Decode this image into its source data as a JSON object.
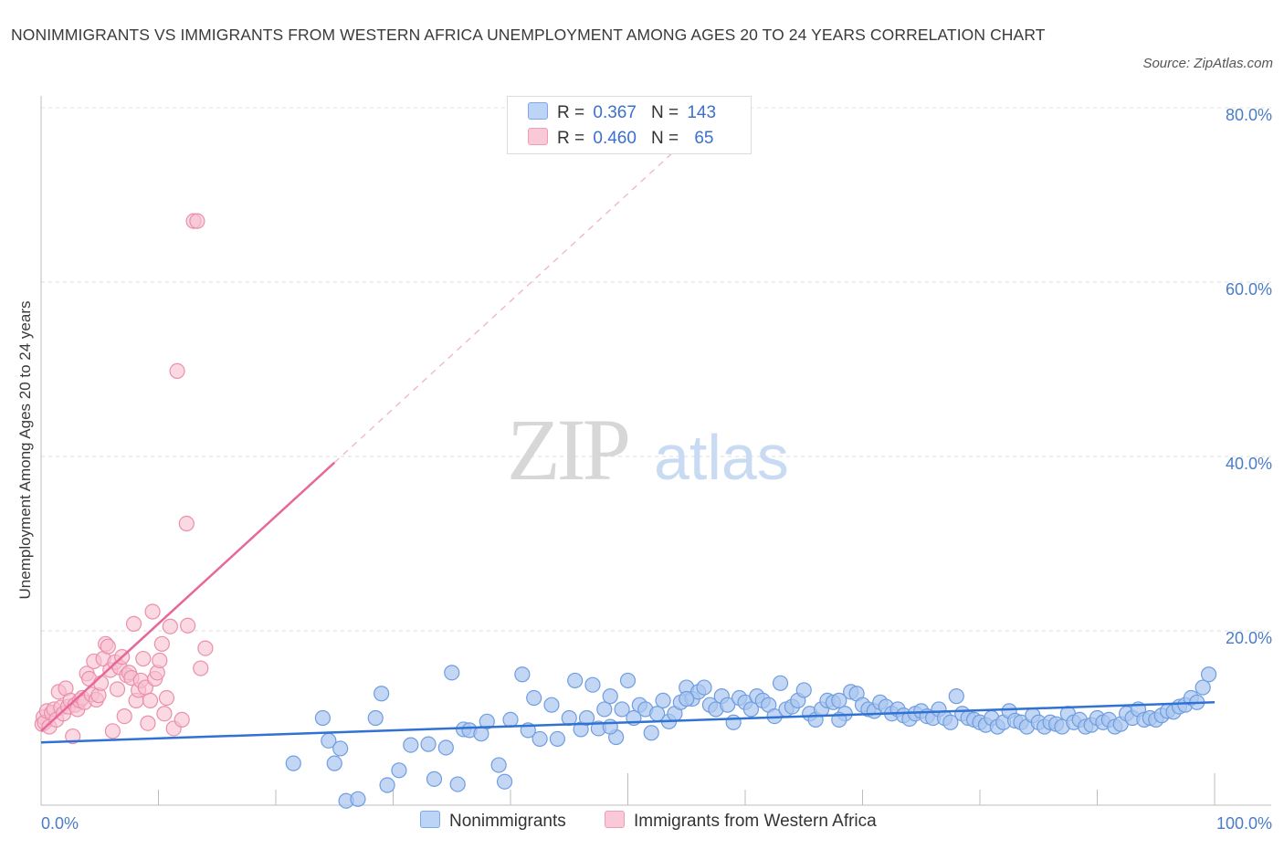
{
  "header": {
    "title": "NONIMMIGRANTS VS IMMIGRANTS FROM WESTERN AFRICA UNEMPLOYMENT AMONG AGES 20 TO 24 YEARS CORRELATION CHART",
    "source": "Source: ZipAtlas.com"
  },
  "watermark": {
    "zip": "ZIP",
    "atlas": "atlas"
  },
  "legend": {
    "rows": [
      {
        "r_label": "R =",
        "r_value": "0.367",
        "n_label": "N =",
        "n_value": "143"
      },
      {
        "r_label": "R =",
        "r_value": "0.460",
        "n_label": "N =",
        "n_value": "65"
      }
    ]
  },
  "chart_data": {
    "type": "scatter",
    "title": "NONIMMIGRANTS VS IMMIGRANTS FROM WESTERN AFRICA UNEMPLOYMENT AMONG AGES 20 TO 24 YEARS CORRELATION CHART",
    "xlabel": "",
    "ylabel": "Unemployment Among Ages 20 to 24 years",
    "xlim": [
      0,
      100
    ],
    "ylim": [
      0,
      80
    ],
    "x_tick_labels": [
      "0.0%",
      "100.0%"
    ],
    "y_ticks": [
      20,
      40,
      60,
      80
    ],
    "y_tick_labels": [
      "20.0%",
      "40.0%",
      "60.0%",
      "80.0%"
    ],
    "grid": true,
    "legend_position": "top-center",
    "colors": {
      "nonimmigrants_fill": "#a9c6f0",
      "nonimmigrants_stroke": "#6e9de0",
      "nonimmigrants_line": "#2f72d4",
      "immigrants_fill": "#f7bfd0",
      "immigrants_stroke": "#ec8eaa",
      "immigrants_line": "#e8679a",
      "tick_label": "#4a7cc7"
    },
    "series": [
      {
        "name": "Nonimmigrants",
        "r": 0.367,
        "n": 143,
        "trend": {
          "x0": 0,
          "y0": 7.2,
          "x1": 100,
          "y1": 11.8
        },
        "points": [
          [
            21.5,
            4.8
          ],
          [
            24.0,
            10.0
          ],
          [
            24.5,
            7.4
          ],
          [
            25.0,
            4.8
          ],
          [
            25.5,
            6.5
          ],
          [
            26.0,
            0.5
          ],
          [
            27.0,
            0.7
          ],
          [
            28.5,
            10.0
          ],
          [
            29.0,
            12.8
          ],
          [
            29.5,
            2.3
          ],
          [
            30.5,
            4.0
          ],
          [
            31.5,
            6.9
          ],
          [
            33.0,
            7.0
          ],
          [
            33.5,
            3.0
          ],
          [
            34.5,
            6.6
          ],
          [
            35.0,
            15.2
          ],
          [
            35.5,
            2.4
          ],
          [
            36.0,
            8.7
          ],
          [
            36.5,
            8.6
          ],
          [
            37.5,
            8.2
          ],
          [
            38.0,
            9.6
          ],
          [
            39.0,
            4.6
          ],
          [
            39.5,
            2.7
          ],
          [
            40.0,
            9.8
          ],
          [
            41.0,
            15.0
          ],
          [
            41.5,
            8.6
          ],
          [
            42.0,
            12.3
          ],
          [
            42.5,
            7.6
          ],
          [
            43.5,
            11.5
          ],
          [
            44.0,
            7.6
          ],
          [
            45.0,
            10.0
          ],
          [
            45.5,
            14.3
          ],
          [
            46.0,
            8.7
          ],
          [
            46.5,
            10.0
          ],
          [
            47.0,
            13.8
          ],
          [
            47.5,
            8.8
          ],
          [
            48.0,
            11.0
          ],
          [
            48.5,
            12.5
          ],
          [
            49.0,
            7.8
          ],
          [
            49.5,
            11.0
          ],
          [
            50.0,
            14.3
          ],
          [
            50.5,
            10.0
          ],
          [
            51.0,
            11.5
          ],
          [
            51.5,
            11.0
          ],
          [
            52.0,
            8.3
          ],
          [
            52.5,
            10.5
          ],
          [
            53.0,
            12.0
          ],
          [
            53.5,
            9.6
          ],
          [
            54.0,
            10.5
          ],
          [
            54.5,
            11.8
          ],
          [
            55.0,
            13.5
          ],
          [
            55.5,
            12.2
          ],
          [
            56.0,
            13.0
          ],
          [
            56.5,
            13.5
          ],
          [
            57.0,
            11.5
          ],
          [
            57.5,
            11.0
          ],
          [
            58.0,
            12.5
          ],
          [
            58.5,
            11.5
          ],
          [
            59.0,
            9.5
          ],
          [
            59.5,
            12.3
          ],
          [
            60.0,
            11.8
          ],
          [
            60.5,
            11.0
          ],
          [
            61.0,
            12.5
          ],
          [
            61.5,
            12.0
          ],
          [
            62.0,
            11.5
          ],
          [
            62.5,
            10.2
          ],
          [
            63.0,
            14.0
          ],
          [
            63.5,
            11.0
          ],
          [
            64.0,
            11.3
          ],
          [
            64.5,
            12.0
          ],
          [
            65.0,
            13.2
          ],
          [
            65.5,
            10.5
          ],
          [
            66.0,
            9.8
          ],
          [
            66.5,
            11.0
          ],
          [
            67.0,
            12.0
          ],
          [
            67.5,
            11.8
          ],
          [
            68.0,
            12.0
          ],
          [
            68.5,
            10.5
          ],
          [
            69.0,
            13.0
          ],
          [
            69.5,
            12.8
          ],
          [
            70.0,
            11.5
          ],
          [
            70.5,
            11.0
          ],
          [
            71.0,
            10.8
          ],
          [
            71.5,
            11.8
          ],
          [
            72.0,
            11.3
          ],
          [
            72.5,
            10.5
          ],
          [
            73.0,
            11.0
          ],
          [
            73.5,
            10.3
          ],
          [
            74.0,
            9.9
          ],
          [
            74.5,
            10.5
          ],
          [
            75.0,
            10.8
          ],
          [
            75.5,
            10.2
          ],
          [
            76.0,
            10.0
          ],
          [
            76.5,
            11.0
          ],
          [
            77.0,
            10.0
          ],
          [
            77.5,
            9.5
          ],
          [
            78.0,
            12.5
          ],
          [
            78.5,
            10.5
          ],
          [
            79.0,
            10.0
          ],
          [
            79.5,
            9.8
          ],
          [
            80.0,
            9.5
          ],
          [
            80.5,
            9.2
          ],
          [
            81.0,
            10.0
          ],
          [
            81.5,
            9.0
          ],
          [
            82.0,
            9.5
          ],
          [
            82.5,
            10.8
          ],
          [
            83.0,
            9.7
          ],
          [
            83.5,
            9.5
          ],
          [
            84.0,
            9.0
          ],
          [
            84.5,
            10.3
          ],
          [
            85.0,
            9.5
          ],
          [
            85.5,
            9.0
          ],
          [
            86.0,
            9.5
          ],
          [
            86.5,
            9.3
          ],
          [
            87.0,
            9.0
          ],
          [
            87.5,
            10.5
          ],
          [
            88.0,
            9.5
          ],
          [
            88.5,
            9.8
          ],
          [
            89.0,
            9.0
          ],
          [
            89.5,
            9.2
          ],
          [
            90.0,
            10.0
          ],
          [
            90.5,
            9.5
          ],
          [
            91.0,
            9.8
          ],
          [
            91.5,
            9.0
          ],
          [
            92.0,
            9.3
          ],
          [
            92.5,
            10.5
          ],
          [
            93.0,
            10.0
          ],
          [
            93.5,
            11.0
          ],
          [
            94.0,
            9.8
          ],
          [
            94.5,
            10.0
          ],
          [
            95.0,
            9.8
          ],
          [
            95.5,
            10.3
          ],
          [
            96.0,
            10.8
          ],
          [
            96.5,
            10.7
          ],
          [
            97.0,
            11.3
          ],
          [
            97.5,
            11.5
          ],
          [
            98.0,
            12.3
          ],
          [
            98.5,
            11.8
          ],
          [
            99.0,
            13.5
          ],
          [
            99.5,
            15.0
          ],
          [
            68.0,
            9.8
          ],
          [
            48.5,
            9.0
          ],
          [
            55.0,
            12.2
          ]
        ]
      },
      {
        "name": "Immigrants from Western Africa",
        "r": 0.46,
        "n": 65,
        "trend": {
          "x0": 0,
          "y0": 8.5,
          "x1": 25,
          "y1": 39.3,
          "x_dash_end": 55,
          "y_dash_end": 76.3
        },
        "points": [
          [
            0.1,
            9.3
          ],
          [
            0.2,
            10.1
          ],
          [
            0.3,
            9.5
          ],
          [
            0.5,
            10.8
          ],
          [
            0.7,
            9.0
          ],
          [
            0.9,
            10.6
          ],
          [
            1.1,
            11.0
          ],
          [
            1.3,
            9.8
          ],
          [
            1.5,
            13.0
          ],
          [
            1.7,
            11.2
          ],
          [
            1.9,
            10.5
          ],
          [
            2.1,
            13.4
          ],
          [
            2.3,
            11.3
          ],
          [
            2.5,
            12.0
          ],
          [
            2.7,
            7.9
          ],
          [
            2.9,
            11.5
          ],
          [
            3.1,
            11.0
          ],
          [
            3.3,
            12.0
          ],
          [
            3.5,
            12.3
          ],
          [
            3.7,
            11.8
          ],
          [
            3.9,
            15.1
          ],
          [
            4.1,
            14.5
          ],
          [
            4.3,
            12.7
          ],
          [
            4.5,
            16.5
          ],
          [
            4.7,
            12.1
          ],
          [
            4.9,
            12.6
          ],
          [
            5.1,
            14.0
          ],
          [
            5.3,
            16.8
          ],
          [
            5.5,
            18.5
          ],
          [
            5.7,
            18.2
          ],
          [
            5.9,
            15.5
          ],
          [
            6.1,
            8.5
          ],
          [
            6.3,
            16.4
          ],
          [
            6.5,
            13.3
          ],
          [
            6.7,
            15.8
          ],
          [
            6.9,
            17.0
          ],
          [
            7.1,
            10.2
          ],
          [
            7.3,
            14.9
          ],
          [
            7.5,
            15.2
          ],
          [
            7.7,
            14.6
          ],
          [
            7.9,
            20.8
          ],
          [
            8.1,
            12.0
          ],
          [
            8.3,
            13.2
          ],
          [
            8.5,
            14.3
          ],
          [
            8.7,
            16.8
          ],
          [
            8.9,
            13.5
          ],
          [
            9.1,
            9.4
          ],
          [
            9.3,
            12.0
          ],
          [
            9.5,
            22.2
          ],
          [
            9.7,
            14.5
          ],
          [
            9.9,
            15.2
          ],
          [
            10.1,
            16.6
          ],
          [
            10.3,
            18.5
          ],
          [
            10.5,
            10.5
          ],
          [
            10.7,
            12.3
          ],
          [
            11.0,
            20.5
          ],
          [
            11.3,
            8.8
          ],
          [
            11.6,
            49.8
          ],
          [
            12.0,
            9.8
          ],
          [
            12.4,
            32.3
          ],
          [
            12.5,
            20.6
          ],
          [
            13.0,
            67.0
          ],
          [
            13.3,
            67.0
          ],
          [
            13.6,
            15.7
          ],
          [
            14.0,
            18.0
          ]
        ]
      }
    ]
  },
  "bottom_legend": {
    "items": [
      "Nonimmigrants",
      "Immigrants from Western Africa"
    ]
  }
}
